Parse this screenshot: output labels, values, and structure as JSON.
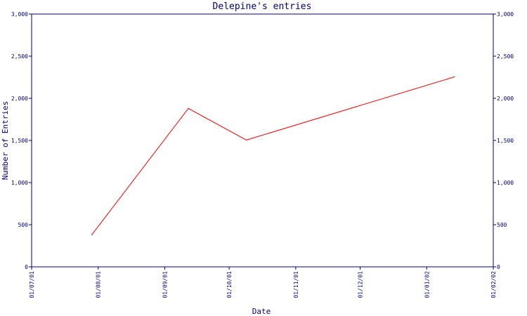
{
  "chart_data": {
    "type": "line",
    "title": "Delepine's entries",
    "xlabel": "Date",
    "ylabel": "Number of Entries",
    "x_axis_type": "date",
    "x_ticks": [
      "01/07/01",
      "01/08/01",
      "01/09/01",
      "01/10/01",
      "01/11/01",
      "01/12/01",
      "01/01/02",
      "01/02/02"
    ],
    "x_tick_dates": [
      "2001-07-01",
      "2001-08-01",
      "2001-09-01",
      "2001-10-01",
      "2001-11-01",
      "2001-12-01",
      "2002-01-01",
      "2002-02-01"
    ],
    "y_ticks": [
      "0",
      "500",
      "1,000",
      "1,500",
      "2,000",
      "2,500",
      "3,000"
    ],
    "y_tick_values": [
      0,
      500,
      1000,
      1500,
      2000,
      2500,
      3000
    ],
    "ylim": [
      0,
      3000
    ],
    "xlim": [
      "2001-07-01",
      "2002-02-01"
    ],
    "grid": false,
    "y_axis_both_sides": true,
    "series": [
      {
        "color": "#ff0000",
        "points": [
          {
            "x": "2001-07-29",
            "y": 380
          },
          {
            "x": "2001-09-12",
            "y": 1880
          },
          {
            "x": "2001-10-09",
            "y": 1505
          },
          {
            "x": "2002-01-14",
            "y": 2255
          }
        ]
      }
    ],
    "colors": {
      "axis": "#000080",
      "text": "#000080",
      "background": "#ffffff"
    }
  }
}
